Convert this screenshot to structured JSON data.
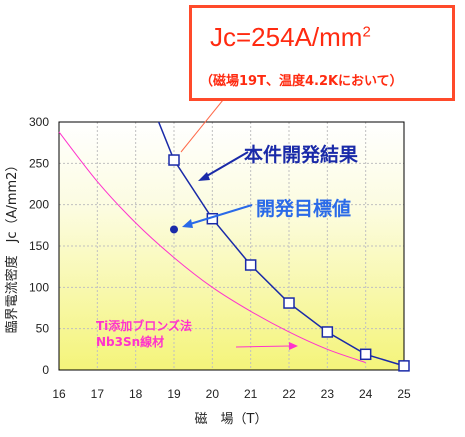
{
  "callout": {
    "main_text": "Jc=254A/mm",
    "main_sup": "2",
    "sub_text": "（磁場19T、温度4.2Kにおいて）"
  },
  "labels": {
    "result": "本件開発結果",
    "target": "開発目標値",
    "ti_line1": "Ti添加ブロンズ法",
    "ti_line2": "Nb3Sn線材"
  },
  "chart_data": {
    "type": "line",
    "xlabel": "磁　場（T）",
    "ylabel": "臨界電流密度　Jc（A/mm2）",
    "xlim": [
      16,
      25
    ],
    "ylim": [
      0,
      300
    ],
    "x_ticks": [
      16,
      17,
      18,
      19,
      20,
      21,
      22,
      23,
      24,
      25
    ],
    "y_ticks": [
      0,
      50,
      100,
      150,
      200,
      250,
      300
    ],
    "grid": true,
    "series": [
      {
        "name": "本件開発結果",
        "color": "#1a2aa8",
        "marker": "square",
        "x": [
          19,
          20,
          21,
          22,
          23,
          24,
          25
        ],
        "y": [
          254,
          183,
          127,
          81,
          46,
          19,
          5
        ],
        "extension": {
          "x": [
            18.6,
            19
          ],
          "y": [
            300,
            254
          ]
        }
      },
      {
        "name": "Ti添加ブロンズ法 Nb3Sn線材",
        "color": "#ff33cc",
        "marker": "none",
        "x": [
          16,
          17,
          18,
          19,
          20,
          21,
          22,
          23,
          24
        ],
        "y": [
          288,
          228,
          178,
          136,
          100,
          71,
          46,
          25,
          9
        ]
      }
    ],
    "points": [
      {
        "name": "開発目標値",
        "x": 19,
        "y": 170,
        "color": "#1a2aa8"
      }
    ]
  }
}
